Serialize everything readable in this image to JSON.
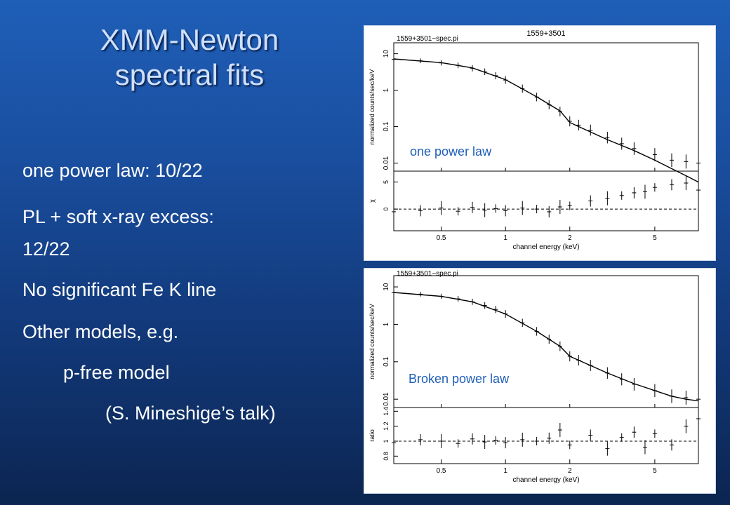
{
  "slide": {
    "title_line1": "XMM-Newton",
    "title_line2": "spectral fits",
    "bullets": [
      "one power law: 10/22",
      "PL + soft x-ray excess:",
      "12/22",
      "No significant Fe K line",
      "Other models, e.g.",
      "p-free model",
      "(S. Mineshige’s talk)"
    ],
    "colors": {
      "background_top": "#1f5fb8",
      "background_bottom": "#0c2551",
      "title": "#cfe0ff",
      "text": "#ffffff",
      "overlay_label": "#1f5fb8"
    }
  },
  "chart_data": [
    {
      "type": "scatter",
      "top_title": "1559+3501",
      "file_label": "1559+3501−spec.pi",
      "overlay_label": "one power law",
      "xlabel": "channel energy (keV)",
      "x_ticks": [
        "0.5",
        "1",
        "2",
        "5"
      ],
      "x_scale": "log",
      "upper_panel": {
        "ylabel": "normalized counts/sec/keV",
        "y_scale": "log",
        "y_ticks": [
          "10",
          "1",
          "0.1",
          "0.01"
        ],
        "ylim": [
          0.006,
          20
        ],
        "data_x": [
          0.3,
          0.4,
          0.5,
          0.6,
          0.7,
          0.8,
          0.9,
          1.0,
          1.2,
          1.4,
          1.6,
          1.8,
          2.0,
          2.2,
          2.5,
          3.0,
          3.5,
          4.0,
          5.0,
          6.0,
          7.0,
          8.0
        ],
        "data_y": [
          7.0,
          6.4,
          5.6,
          4.8,
          4.0,
          3.2,
          2.5,
          1.9,
          1.1,
          0.65,
          0.4,
          0.26,
          0.14,
          0.11,
          0.08,
          0.05,
          0.034,
          0.025,
          0.017,
          0.012,
          0.011,
          0.01
        ],
        "model_x": [
          0.3,
          0.5,
          0.7,
          1.0,
          1.4,
          1.8,
          2.0,
          2.2,
          3.0,
          4.0,
          5.0,
          6.0,
          7.0,
          8.0
        ],
        "model_y": [
          7.2,
          5.7,
          4.1,
          1.95,
          0.66,
          0.27,
          0.13,
          0.1,
          0.044,
          0.022,
          0.012,
          0.007,
          0.0045,
          0.003
        ]
      },
      "lower_panel": {
        "ylabel": "χ",
        "y_ticks": [
          "0",
          "5"
        ],
        "ylim": [
          -4,
          7
        ],
        "reference_line": 0,
        "data_x": [
          0.3,
          0.4,
          0.5,
          0.6,
          0.7,
          0.8,
          0.9,
          1.0,
          1.2,
          1.4,
          1.6,
          1.8,
          2.0,
          2.5,
          3.0,
          3.5,
          4.0,
          4.5,
          5.0,
          6.0,
          7.0,
          8.0
        ],
        "data_y": [
          -0.5,
          -0.3,
          0.2,
          -0.4,
          0.3,
          -0.2,
          0.1,
          -0.3,
          0.2,
          0.0,
          -0.5,
          0.4,
          0.6,
          1.5,
          2.0,
          2.5,
          3.0,
          3.2,
          4.0,
          4.5,
          4.8,
          3.5
        ]
      }
    },
    {
      "type": "scatter",
      "top_title": "",
      "file_label": "1559+3501−spec.pi",
      "overlay_label": "Broken power law",
      "xlabel": "channel energy (keV)",
      "x_ticks": [
        "0.5",
        "1",
        "2",
        "5"
      ],
      "x_scale": "log",
      "upper_panel": {
        "ylabel": "normalized counts/sec/keV",
        "y_scale": "log",
        "y_ticks": [
          "10",
          "1",
          "0.1",
          "0.01"
        ],
        "ylim": [
          0.006,
          20
        ],
        "data_x": [
          0.3,
          0.4,
          0.5,
          0.6,
          0.7,
          0.8,
          0.9,
          1.0,
          1.2,
          1.4,
          1.6,
          1.8,
          2.0,
          2.2,
          2.5,
          3.0,
          3.5,
          4.0,
          5.0,
          6.0,
          7.0,
          8.0
        ],
        "data_y": [
          7.0,
          6.4,
          5.6,
          4.8,
          4.0,
          3.2,
          2.5,
          1.9,
          1.1,
          0.65,
          0.4,
          0.26,
          0.14,
          0.11,
          0.08,
          0.05,
          0.034,
          0.025,
          0.017,
          0.012,
          0.011,
          0.01
        ],
        "model_x": [
          0.3,
          0.5,
          0.7,
          1.0,
          1.4,
          1.8,
          2.0,
          2.2,
          3.0,
          4.0,
          5.0,
          6.0,
          7.0,
          8.0
        ],
        "model_y": [
          7.1,
          5.6,
          4.0,
          1.9,
          0.65,
          0.26,
          0.14,
          0.11,
          0.05,
          0.026,
          0.017,
          0.012,
          0.01,
          0.009
        ]
      },
      "lower_panel": {
        "ylabel": "ratio",
        "y_ticks": [
          "0.8",
          "1",
          "1.2",
          "1.4"
        ],
        "ylim": [
          0.7,
          1.45
        ],
        "reference_line": 1,
        "data_x": [
          0.3,
          0.4,
          0.5,
          0.6,
          0.7,
          0.8,
          0.9,
          1.0,
          1.2,
          1.4,
          1.6,
          1.8,
          2.0,
          2.5,
          3.0,
          3.5,
          4.0,
          4.5,
          5.0,
          6.0,
          7.0,
          8.0
        ],
        "data_y": [
          0.98,
          1.02,
          1.0,
          0.97,
          1.03,
          0.99,
          1.01,
          0.98,
          1.02,
          1.0,
          1.04,
          1.15,
          0.95,
          1.08,
          0.9,
          1.05,
          1.12,
          0.92,
          1.1,
          0.95,
          1.2,
          1.3
        ]
      }
    }
  ]
}
